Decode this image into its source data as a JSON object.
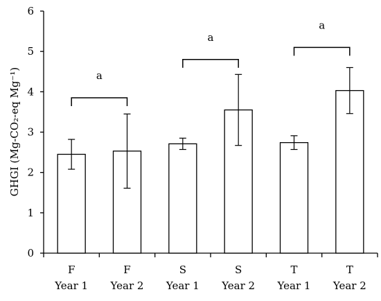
{
  "chart_data": {
    "type": "bar",
    "categories": [
      [
        "F",
        "Year 1"
      ],
      [
        "F",
        "Year 2"
      ],
      [
        "S",
        "Year 1"
      ],
      [
        "S",
        "Year 2"
      ],
      [
        "T",
        "Year 1"
      ],
      [
        "T",
        "Year 2"
      ]
    ],
    "values": [
      2.45,
      2.53,
      2.71,
      3.55,
      2.74,
      4.03
    ],
    "error": [
      0.37,
      0.92,
      0.14,
      0.88,
      0.17,
      0.57
    ],
    "ylabel": "GHGI (Mg-CO₂-eq Mg⁻¹)",
    "ylim": [
      0,
      6
    ],
    "yticks": [
      0,
      1,
      2,
      3,
      4,
      5,
      6
    ],
    "grid": false,
    "bar_fill": "#ffffff",
    "bar_stroke": "#000000",
    "annotations": [
      {
        "label": "a",
        "pair": [
          0,
          1
        ],
        "y": 3.85
      },
      {
        "label": "a",
        "pair": [
          2,
          3
        ],
        "y": 4.8
      },
      {
        "label": "a",
        "pair": [
          4,
          5
        ],
        "y": 5.1
      }
    ]
  }
}
